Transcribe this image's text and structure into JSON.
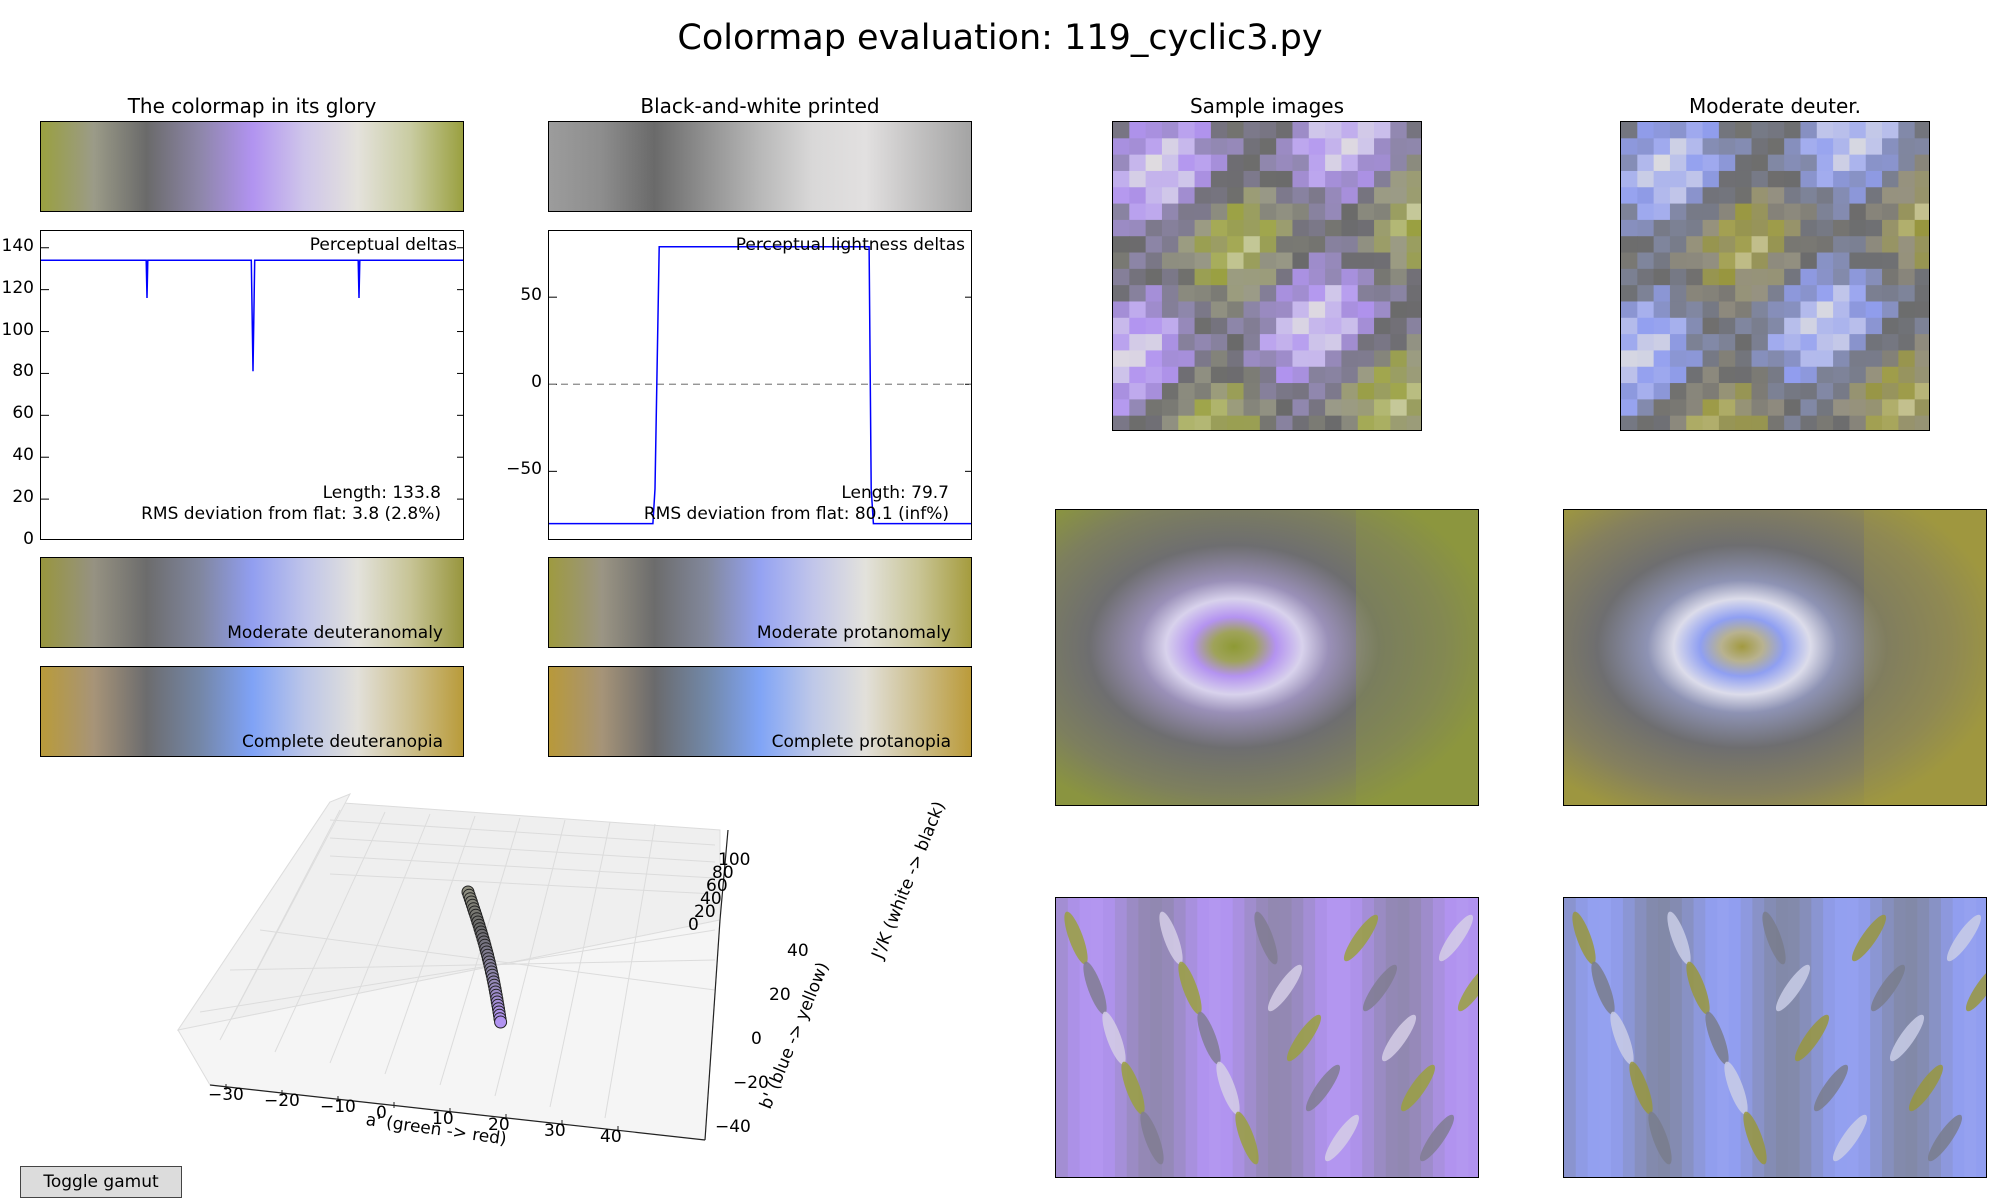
{
  "page_title": "Colormap evaluation: 119_cyclic3.py",
  "panels": {
    "glory": "The colormap in its glory",
    "bw": "Black-and-white printed",
    "samples": "Sample images",
    "deuter": "Moderate deuter."
  },
  "colormaps": {
    "glory": [
      "#9aa040",
      "#9b9b88",
      "#6a6a6a",
      "#8d86a8",
      "#b193f0",
      "#cfc6ea",
      "#e4e2dc",
      "#c9cca2",
      "#9aa040"
    ],
    "bw": [
      "#9c9c9c",
      "#8d8d8d",
      "#6a6a6a",
      "#929292",
      "#b8b8b8",
      "#d9d8d8",
      "#e2e0e0",
      "#c2c1c1",
      "#a4a4a4"
    ],
    "mod_deuteranomaly": [
      "#98963e",
      "#969282",
      "#6c6c6c",
      "#80869e",
      "#919ef0",
      "#bfc4ea",
      "#e3e2dc",
      "#c7c496",
      "#98963e"
    ],
    "mod_protanomaly": [
      "#9e9a40",
      "#9b9584",
      "#6c6c6c",
      "#82889c",
      "#94a2f2",
      "#c1c5ea",
      "#e3e2dc",
      "#c9c596",
      "#a59c3e"
    ],
    "comp_deuteranopia": [
      "#b99b3a",
      "#a79478",
      "#6c6c6e",
      "#7486a6",
      "#7fa2f6",
      "#bcc6e8",
      "#e2e0da",
      "#cdc08e",
      "#b99b3a"
    ],
    "comp_protanopia": [
      "#b8993a",
      "#a69478",
      "#6a6a6c",
      "#7288a8",
      "#80a4f6",
      "#bec8e8",
      "#e2e0da",
      "#ccbe8c",
      "#bb9b3a"
    ]
  },
  "cbar_labels": {
    "mod_deuteranomaly": "Moderate deuteranomaly",
    "mod_protanomaly": "Moderate protanomaly",
    "comp_deuteranopia": "Complete deuteranopia",
    "comp_protanopia": "Complete protanopia"
  },
  "chart_data": [
    {
      "type": "line",
      "title": "Perceptual deltas",
      "ylim": [
        0,
        148
      ],
      "yticks": [
        "140",
        "120",
        "100",
        "80",
        "60",
        "40",
        "20",
        "0"
      ],
      "x": [
        0,
        0.248,
        0.25,
        0.252,
        0.496,
        0.5,
        0.504,
        0.748,
        0.75,
        0.752,
        1
      ],
      "y": [
        134,
        134,
        116,
        134,
        134,
        81,
        134,
        134,
        116,
        134,
        134
      ],
      "color": "#0000ff",
      "annotations": [
        "Length: 133.8",
        "RMS deviation from flat: 3.8 (2.8%)"
      ]
    },
    {
      "type": "line",
      "title": "Perceptual lightness deltas",
      "ylim": [
        -90,
        88
      ],
      "yticks": [
        "50",
        "0",
        "−50"
      ],
      "x": [
        0,
        0.245,
        0.25,
        0.26,
        0.755,
        0.76,
        0.765,
        1
      ],
      "y": [
        -80,
        -80,
        -60,
        79,
        79,
        -60,
        -80,
        -80
      ],
      "zero_line": true,
      "color": "#0000ff",
      "annotations": [
        "Length: 79.7",
        "RMS deviation from flat: 80.1 (inf%)"
      ]
    },
    {
      "type": "scatter",
      "projection": "3d",
      "xlabel": "a' (green -> red)",
      "ylabel": "b' (blue -> yellow)",
      "zlabel": "J'/K (white -> black)",
      "xticks": [
        "−30",
        "−20",
        "−10",
        "0",
        "10",
        "20",
        "30",
        "40"
      ],
      "yticks": [
        "−40",
        "−20",
        "0",
        "20",
        "40"
      ],
      "zticks": [
        "0",
        "20",
        "40",
        "60",
        "80",
        "100"
      ]
    }
  ],
  "toggle_label": "Toggle gamut"
}
